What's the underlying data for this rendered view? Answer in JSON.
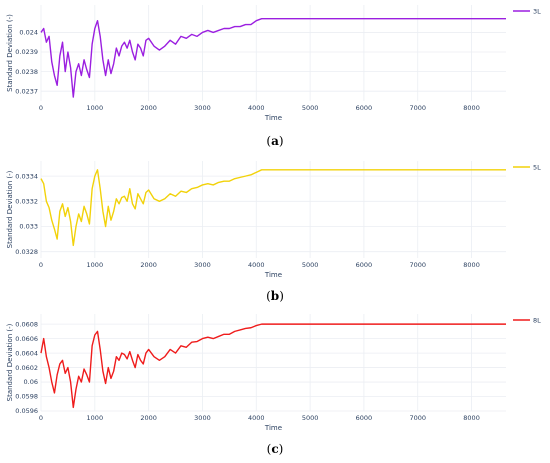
{
  "colors": {
    "grid": "#ebeef3",
    "text": "#2a3f5f"
  },
  "chart_data": [
    {
      "type": "line",
      "panel_label": "a",
      "xlabel": "Time",
      "ylabel": "Standard Deviation (-)",
      "xlim": [
        0,
        8640
      ],
      "ylim": [
        0.02365,
        0.02414
      ],
      "xticks": [
        0,
        1000,
        2000,
        3000,
        4000,
        5000,
        6000,
        7000,
        8000
      ],
      "yticks": [
        0.0237,
        0.0238,
        0.0239,
        0.024
      ],
      "yticklabels": [
        "0.0237",
        "0.0238",
        "0.0239",
        "0.024"
      ],
      "grid": true,
      "legend": "top-right",
      "series": [
        {
          "name": "3L",
          "color": "#9b1fe0",
          "x": [
            0,
            50,
            100,
            150,
            200,
            250,
            300,
            350,
            400,
            450,
            500,
            550,
            600,
            650,
            700,
            750,
            800,
            850,
            900,
            950,
            1000,
            1050,
            1100,
            1150,
            1200,
            1250,
            1300,
            1350,
            1400,
            1450,
            1500,
            1550,
            1600,
            1650,
            1700,
            1750,
            1800,
            1850,
            1900,
            1950,
            2000,
            2100,
            2200,
            2300,
            2400,
            2500,
            2600,
            2700,
            2800,
            2900,
            3000,
            3100,
            3200,
            3300,
            3400,
            3500,
            3600,
            3700,
            3800,
            3900,
            4000,
            4100,
            4200,
            4500,
            5000,
            6000,
            7000,
            8000,
            8640
          ],
          "values": [
            0.024,
            0.02402,
            0.02395,
            0.02398,
            0.02385,
            0.02378,
            0.02373,
            0.02388,
            0.02395,
            0.0238,
            0.0239,
            0.02382,
            0.02367,
            0.0238,
            0.02384,
            0.02378,
            0.02386,
            0.02381,
            0.02377,
            0.02394,
            0.02402,
            0.02406,
            0.02398,
            0.02386,
            0.02378,
            0.02386,
            0.02379,
            0.02384,
            0.02392,
            0.02388,
            0.02393,
            0.02395,
            0.02392,
            0.02396,
            0.0239,
            0.02386,
            0.02394,
            0.02392,
            0.02388,
            0.02396,
            0.02397,
            0.02393,
            0.02391,
            0.02393,
            0.02396,
            0.02394,
            0.02398,
            0.02397,
            0.02399,
            0.02398,
            0.024,
            0.02401,
            0.024,
            0.02401,
            0.02402,
            0.02402,
            0.02403,
            0.02403,
            0.02404,
            0.02404,
            0.02406,
            0.02407,
            0.02407,
            0.02407,
            0.02407,
            0.02407,
            0.02407,
            0.02407,
            0.02407
          ]
        }
      ]
    },
    {
      "type": "line",
      "panel_label": "b",
      "xlabel": "Time",
      "ylabel": "Standard Deviation (-)",
      "xlim": [
        0,
        8640
      ],
      "ylim": [
        0.03275,
        0.03352
      ],
      "xticks": [
        0,
        1000,
        2000,
        3000,
        4000,
        5000,
        6000,
        7000,
        8000
      ],
      "yticks": [
        0.0328,
        0.033,
        0.0332,
        0.0334
      ],
      "yticklabels": [
        "0.0328",
        "0.033",
        "0.0332",
        "0.0334"
      ],
      "grid": true,
      "legend": "top-right",
      "series": [
        {
          "name": "5L",
          "color": "#f2d20a",
          "x": [
            0,
            50,
            100,
            150,
            200,
            250,
            300,
            350,
            400,
            450,
            500,
            550,
            600,
            650,
            700,
            750,
            800,
            850,
            900,
            950,
            1000,
            1050,
            1100,
            1150,
            1200,
            1250,
            1300,
            1350,
            1400,
            1450,
            1500,
            1550,
            1600,
            1650,
            1700,
            1750,
            1800,
            1850,
            1900,
            1950,
            2000,
            2100,
            2200,
            2300,
            2400,
            2500,
            2600,
            2700,
            2800,
            2900,
            3000,
            3100,
            3200,
            3300,
            3400,
            3500,
            3600,
            3700,
            3800,
            3900,
            4000,
            4100,
            4200,
            4500,
            5000,
            6000,
            7000,
            8000,
            8640
          ],
          "values": [
            0.03338,
            0.03334,
            0.0332,
            0.03315,
            0.03305,
            0.03298,
            0.0329,
            0.03312,
            0.03318,
            0.03308,
            0.03315,
            0.03304,
            0.03285,
            0.033,
            0.0331,
            0.03304,
            0.03316,
            0.0331,
            0.03302,
            0.0333,
            0.0334,
            0.03345,
            0.0333,
            0.03312,
            0.033,
            0.03316,
            0.03305,
            0.03312,
            0.03322,
            0.03318,
            0.03323,
            0.03324,
            0.0332,
            0.0333,
            0.03318,
            0.03314,
            0.03326,
            0.03322,
            0.03318,
            0.03327,
            0.03329,
            0.03322,
            0.0332,
            0.03322,
            0.03326,
            0.03324,
            0.03328,
            0.03327,
            0.0333,
            0.03331,
            0.03333,
            0.03334,
            0.03333,
            0.03335,
            0.03336,
            0.03336,
            0.03338,
            0.03339,
            0.0334,
            0.03341,
            0.03343,
            0.03345,
            0.03345,
            0.03345,
            0.03345,
            0.03345,
            0.03345,
            0.03345,
            0.03345
          ]
        }
      ]
    },
    {
      "type": "line",
      "panel_label": "c",
      "xlabel": "Time",
      "ylabel": "Standard Deviation (-)",
      "xlim": [
        0,
        8640
      ],
      "ylim": [
        0.0596,
        0.06094
      ],
      "xticks": [
        0,
        1000,
        2000,
        3000,
        4000,
        5000,
        6000,
        7000,
        8000
      ],
      "yticks": [
        0.0596,
        0.0598,
        0.06,
        0.0602,
        0.0604,
        0.0606,
        0.0608
      ],
      "yticklabels": [
        "0.0596",
        "0.0598",
        "0.06",
        "0.0602",
        "0.0604",
        "0.0606",
        "0.0608"
      ],
      "grid": true,
      "legend": "top-right",
      "series": [
        {
          "name": "8L",
          "color": "#ef1c1c",
          "x": [
            0,
            50,
            100,
            150,
            200,
            250,
            300,
            350,
            400,
            450,
            500,
            550,
            600,
            650,
            700,
            750,
            800,
            850,
            900,
            950,
            1000,
            1050,
            1100,
            1150,
            1200,
            1250,
            1300,
            1350,
            1400,
            1450,
            1500,
            1550,
            1600,
            1650,
            1700,
            1750,
            1800,
            1850,
            1900,
            1950,
            2000,
            2100,
            2200,
            2300,
            2400,
            2500,
            2600,
            2700,
            2800,
            2900,
            3000,
            3100,
            3200,
            3300,
            3400,
            3500,
            3600,
            3700,
            3800,
            3900,
            4000,
            4100,
            4200,
            4500,
            5000,
            6000,
            7000,
            8000,
            8640
          ],
          "values": [
            0.0604,
            0.0606,
            0.06035,
            0.0602,
            0.06,
            0.05985,
            0.0601,
            0.06025,
            0.0603,
            0.06012,
            0.0602,
            0.06,
            0.05965,
            0.0599,
            0.06008,
            0.06,
            0.06018,
            0.0601,
            0.06,
            0.0605,
            0.06065,
            0.0607,
            0.06045,
            0.06015,
            0.05998,
            0.0602,
            0.06005,
            0.06015,
            0.06035,
            0.0603,
            0.0604,
            0.06038,
            0.06032,
            0.06042,
            0.0603,
            0.0602,
            0.06038,
            0.0603,
            0.06025,
            0.0604,
            0.06045,
            0.06035,
            0.0603,
            0.06035,
            0.06045,
            0.0604,
            0.0605,
            0.06048,
            0.06055,
            0.06056,
            0.0606,
            0.06062,
            0.0606,
            0.06063,
            0.06066,
            0.06066,
            0.0607,
            0.06072,
            0.06074,
            0.06075,
            0.06078,
            0.0608,
            0.0608,
            0.0608,
            0.0608,
            0.0608,
            0.0608,
            0.0608,
            0.0608
          ]
        }
      ]
    }
  ]
}
